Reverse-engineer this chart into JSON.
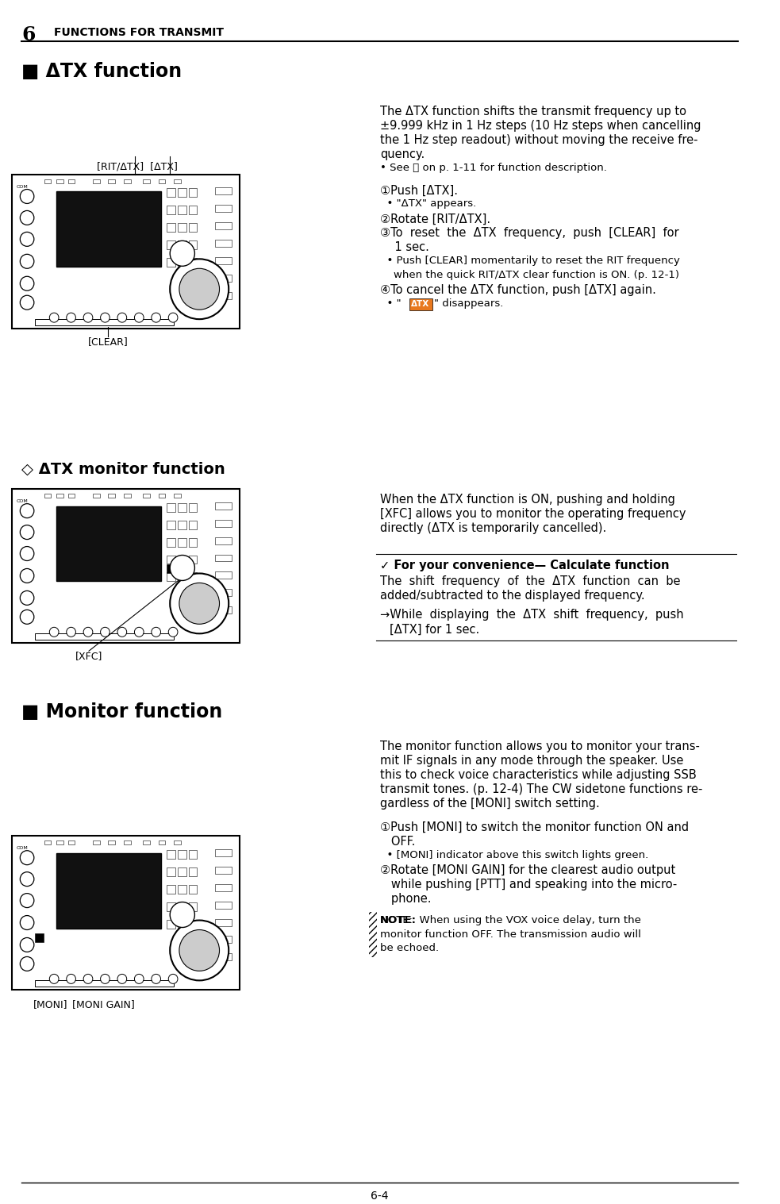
{
  "page_number": "6-4",
  "header_number": "6",
  "header_text": "FUNCTIONS FOR TRANSMIT",
  "background_color": "#ffffff",
  "text_color": "#000000",
  "orange_color": "#E8781E",
  "section1_title": "■ ΔTX function",
  "section2_title": "◇ ΔTX monitor function",
  "section3_title": "■ Monitor function",
  "label_rit_dtx": "[RIT/ΔTX]  [ΔTX]",
  "label_clear": "[CLEAR]",
  "label_xfc": "[XFC]",
  "label_moni": "[MONI]",
  "label_moni_gain": "[MONI GAIN]"
}
